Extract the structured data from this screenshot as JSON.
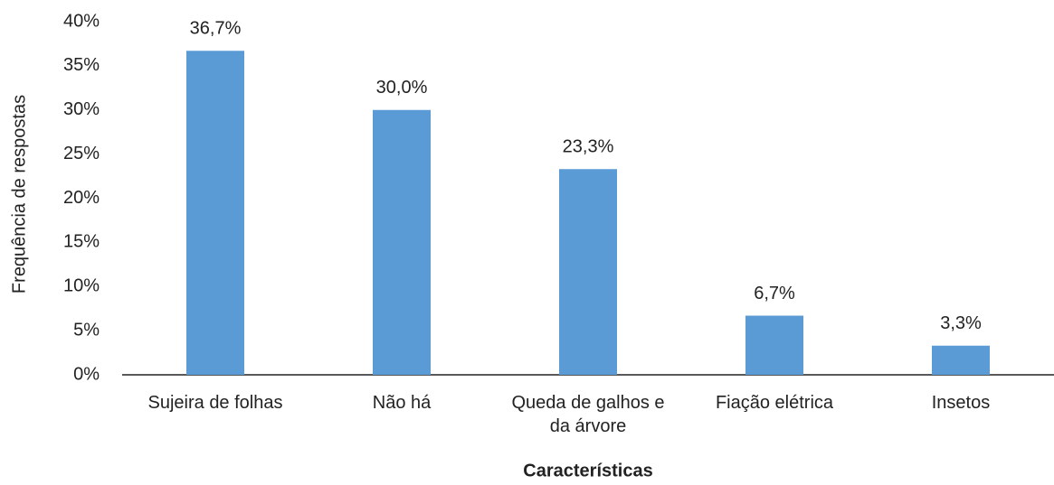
{
  "chart_data": {
    "type": "bar",
    "y_label": "Frequência de respostas",
    "x_label": "Características",
    "categories": [
      "Sujeira de folhas",
      "Não há",
      "Queda de galhos e da árvore",
      "Fiação elétrica",
      "Insetos"
    ],
    "values": [
      36.7,
      30.0,
      23.3,
      6.7,
      3.3
    ],
    "value_labels": [
      "36,7%",
      "30,0%",
      "23,3%",
      "6,7%",
      "3,3%"
    ],
    "color": "#5b9bd5",
    "ylim": [
      0,
      40
    ],
    "yticks": [
      {
        "value": 0,
        "label": "0%"
      },
      {
        "value": 5,
        "label": "5%"
      },
      {
        "value": 10,
        "label": "10%"
      },
      {
        "value": 15,
        "label": "15%"
      },
      {
        "value": 20,
        "label": "20%"
      },
      {
        "value": 25,
        "label": "25%"
      },
      {
        "value": 30,
        "label": "30%"
      },
      {
        "value": 35,
        "label": "35%"
      },
      {
        "value": 40,
        "label": "40%"
      }
    ],
    "grid": false
  }
}
